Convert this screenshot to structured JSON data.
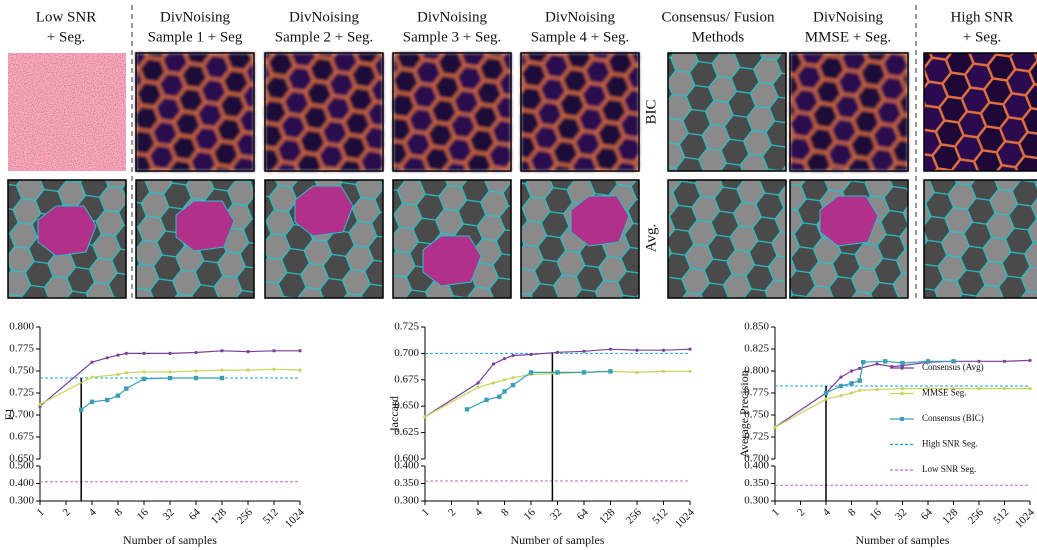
{
  "figure": {
    "columns": [
      [
        "Low SNR",
        "+ Seg."
      ],
      [
        "DivNoising",
        "Sample 1 + Seg"
      ],
      [
        "DivNoising",
        "Sample 2 + Seg."
      ],
      [
        "DivNoising",
        "Sample 3 + Seg."
      ],
      [
        "DivNoising",
        "Sample 4 + Seg."
      ],
      [
        "Consensus/ Fusion",
        "Methods"
      ],
      [
        "DivNoising",
        "MMSE + Seg."
      ],
      [
        "High SNR",
        "+ Seg."
      ]
    ],
    "row_labels": [
      "BIC",
      "Avg."
    ]
  },
  "chart_data": [
    {
      "type": "line",
      "ylabel": "F1",
      "xlabel": "Number of samples",
      "log_base_x": 2,
      "xlim": [
        1,
        1024
      ],
      "xticks": [
        1,
        2,
        4,
        8,
        16,
        32,
        64,
        128,
        256,
        512,
        1024
      ],
      "ylim": [
        0.65,
        0.8
      ],
      "yticks": [
        {
          "value": 0.65,
          "label": "0.650"
        },
        {
          "value": 0.675,
          "label": "0.675"
        },
        {
          "value": 0.7,
          "label": "0.700"
        },
        {
          "value": 0.725,
          "label": "0.725"
        },
        {
          "value": 0.75,
          "label": "0.750"
        },
        {
          "value": 0.775,
          "label": "0.775"
        },
        {
          "value": 0.8,
          "label": "0.800"
        }
      ],
      "ylim_lower": [
        0.3,
        0.5
      ],
      "yticks_lower": [
        {
          "value": 0.3,
          "label": "0.300"
        },
        {
          "value": 0.4,
          "label": "0.400"
        },
        {
          "value": 0.5,
          "label": "0.500"
        }
      ],
      "vline_x": 3,
      "series": [
        {
          "color": "#7b3f98",
          "marker": "circle",
          "x": [
            1,
            4,
            6,
            8,
            10,
            16,
            32,
            64,
            128,
            256,
            512,
            1024
          ],
          "values": [
            0.71,
            0.76,
            0.765,
            0.768,
            0.77,
            0.77,
            0.77,
            0.771,
            0.773,
            0.772,
            0.773,
            0.773
          ]
        },
        {
          "color": "#c9d45c",
          "marker": "circle",
          "x": [
            1,
            4,
            8,
            10,
            16,
            32,
            64,
            128,
            256,
            512,
            1024
          ],
          "values": [
            0.712,
            0.743,
            0.746,
            0.748,
            0.749,
            0.749,
            0.75,
            0.751,
            0.751,
            0.752,
            0.751
          ]
        },
        {
          "color": "#3a9fb5",
          "marker": "square",
          "x": [
            3,
            4,
            6,
            8,
            10,
            16,
            32,
            64,
            128
          ],
          "values": [
            0.706,
            0.715,
            0.717,
            0.722,
            0.73,
            0.741,
            0.742,
            0.742,
            0.742
          ]
        }
      ],
      "ref_lines": [
        {
          "color": "#1f9fe0",
          "value": 0.742
        },
        {
          "color": "#c864c8",
          "value": 0.41
        }
      ]
    },
    {
      "type": "line",
      "ylabel": "Jaccard",
      "xlabel": "Number of samples",
      "log_base_x": 2,
      "xlim": [
        1,
        1024
      ],
      "xticks": [
        1,
        2,
        4,
        8,
        16,
        32,
        64,
        128,
        256,
        512,
        1024
      ],
      "ylim": [
        0.6,
        0.725
      ],
      "yticks": [
        {
          "value": 0.6,
          "label": "0.600"
        },
        {
          "value": 0.625,
          "label": "0.625"
        },
        {
          "value": 0.65,
          "label": "0.650"
        },
        {
          "value": 0.675,
          "label": "0.675"
        },
        {
          "value": 0.7,
          "label": "0.700"
        },
        {
          "value": 0.725,
          "label": "0.725"
        }
      ],
      "ylim_lower": [
        0.3,
        0.4
      ],
      "yticks_lower": [
        {
          "value": 0.3,
          "label": "0.300"
        },
        {
          "value": 0.35,
          "label": "0.350"
        },
        {
          "value": 0.4,
          "label": "0.400"
        }
      ],
      "vline_x": 28,
      "series": [
        {
          "color": "#7b3f98",
          "marker": "circle",
          "x": [
            1,
            4,
            6,
            8,
            10,
            16,
            32,
            64,
            128,
            256,
            512,
            1024
          ],
          "values": [
            0.64,
            0.672,
            0.69,
            0.695,
            0.698,
            0.699,
            0.701,
            0.702,
            0.704,
            0.703,
            0.703,
            0.704
          ]
        },
        {
          "color": "#c9d45c",
          "marker": "circle",
          "x": [
            1,
            4,
            6,
            8,
            10,
            16,
            32,
            64,
            128,
            256,
            512,
            1024
          ],
          "values": [
            0.64,
            0.668,
            0.672,
            0.675,
            0.677,
            0.68,
            0.681,
            0.682,
            0.683,
            0.682,
            0.683,
            0.683
          ]
        },
        {
          "color": "#3a9fb5",
          "marker": "square",
          "x": [
            3,
            5,
            7,
            8,
            10,
            16,
            32,
            64,
            128
          ],
          "values": [
            0.647,
            0.656,
            0.659,
            0.664,
            0.67,
            0.682,
            0.682,
            0.682,
            0.683
          ]
        }
      ],
      "ref_lines": [
        {
          "color": "#1f9fe0",
          "value": 0.7
        },
        {
          "color": "#c864c8",
          "value": 0.357
        }
      ]
    },
    {
      "type": "line",
      "ylabel": "Average Precision",
      "xlabel": "Number of samples",
      "log_base_x": 2,
      "legend": "right",
      "xlim": [
        1,
        1024
      ],
      "xticks": [
        1,
        2,
        4,
        8,
        16,
        32,
        64,
        128,
        256,
        512,
        1024
      ],
      "ylim": [
        0.7,
        0.85
      ],
      "yticks": [
        {
          "value": 0.7,
          "label": "0.700"
        },
        {
          "value": 0.725,
          "label": "0.725"
        },
        {
          "value": 0.75,
          "label": "0.750"
        },
        {
          "value": 0.775,
          "label": "0.775"
        },
        {
          "value": 0.8,
          "label": "0.800"
        },
        {
          "value": 0.825,
          "label": "0.825"
        },
        {
          "value": 0.85,
          "label": "0.850"
        }
      ],
      "ylim_lower": [
        0.3,
        0.4
      ],
      "yticks_lower": [
        {
          "value": 0.3,
          "label": "0.300"
        },
        {
          "value": 0.35,
          "label": "0.350"
        },
        {
          "value": 0.4,
          "label": "0.400"
        }
      ],
      "vline_x": 4,
      "series": [
        {
          "name": "Consensus (Avg)",
          "color": "#7b3f98",
          "marker": "circle",
          "x": [
            1,
            4,
            6,
            8,
            10,
            16,
            24,
            32,
            64,
            128,
            256,
            512,
            1024
          ],
          "values": [
            0.736,
            0.775,
            0.793,
            0.8,
            0.803,
            0.808,
            0.805,
            0.806,
            0.81,
            0.811,
            0.811,
            0.811,
            0.812
          ]
        },
        {
          "name": "MMSE Seg.",
          "color": "#c9d45c",
          "marker": "circle",
          "x": [
            1,
            4,
            6,
            8,
            10,
            16,
            32,
            64,
            128,
            256,
            512,
            1024
          ],
          "values": [
            0.736,
            0.768,
            0.772,
            0.775,
            0.778,
            0.779,
            0.78,
            0.78,
            0.78,
            0.78,
            0.78,
            0.78
          ]
        },
        {
          "name": "Consensus (BIC)",
          "color": "#3a9fb5",
          "marker": "square",
          "x": [
            4,
            6,
            8,
            10,
            11,
            20,
            32,
            64,
            128
          ],
          "values": [
            0.775,
            0.783,
            0.786,
            0.789,
            0.81,
            0.811,
            0.809,
            0.811,
            0.811
          ]
        }
      ],
      "ref_lines": [
        {
          "name": "High SNR Seg.",
          "color": "#1f9fe0",
          "value": 0.783
        },
        {
          "name": "Low SNR Seg.",
          "color": "#c864c8",
          "value": 0.345
        }
      ]
    }
  ]
}
